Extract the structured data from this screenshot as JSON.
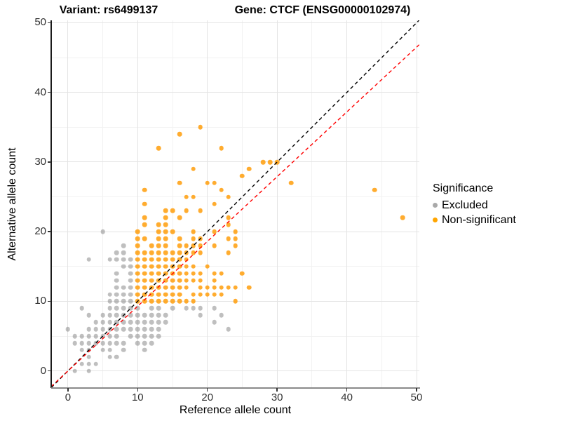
{
  "titles": {
    "left": "Variant: rs6499137",
    "right": "Gene: CTCF (ENSG00000102974)"
  },
  "legend": {
    "title": "Significance",
    "items": [
      {
        "label": "Excluded",
        "color": "#a9a9a9"
      },
      {
        "label": "Non-significant",
        "color": "#ffa500"
      }
    ]
  },
  "colors": {
    "excluded_point": "#8a8a8a",
    "nonsignificant_point": "#ff9e0b",
    "identity_line": "#000000",
    "fit_line": "#ff0000",
    "grid_major": "#e4e4e4",
    "grid_minor": "#f2f2f2"
  },
  "chart_data": {
    "type": "scatter",
    "title_left": "Variant: rs6499137",
    "title_right": "Gene: CTCF (ENSG00000102974)",
    "xlabel": "Reference allele count",
    "ylabel": "Alternative allele count",
    "xlim": [
      -2.4,
      50.4
    ],
    "ylim": [
      -2.35,
      50.35
    ],
    "x_major_ticks": [
      0,
      10,
      20,
      30,
      40,
      50
    ],
    "y_major_ticks": [
      0,
      10,
      20,
      30,
      40,
      50
    ],
    "x_minor_ticks": [
      5,
      15,
      25,
      35,
      45
    ],
    "y_minor_ticks": [
      5,
      15,
      25,
      35,
      45
    ],
    "grid": true,
    "legend_position": "right",
    "lines": [
      {
        "name": "identity",
        "slope": 1.0,
        "intercept": 0,
        "color": "#000000",
        "dash": "5,4"
      },
      {
        "name": "fit",
        "slope": 0.93,
        "intercept": 0,
        "color": "#ff0000",
        "dash": "5,4"
      }
    ],
    "series": [
      {
        "name": "Excluded",
        "class": "excluded",
        "points": [
          [
            1,
            0
          ],
          [
            3,
            0
          ],
          [
            2,
            1
          ],
          [
            3,
            1
          ],
          [
            4,
            1
          ],
          [
            3,
            2
          ],
          [
            6,
            2
          ],
          [
            7,
            2
          ],
          [
            2,
            3
          ],
          [
            3,
            3
          ],
          [
            5,
            3
          ],
          [
            6,
            3
          ],
          [
            8,
            3
          ],
          [
            11,
            3
          ],
          [
            1,
            4
          ],
          [
            2,
            4
          ],
          [
            3,
            4
          ],
          [
            4,
            4
          ],
          [
            5,
            4
          ],
          [
            6,
            4
          ],
          [
            7,
            4
          ],
          [
            8,
            4
          ],
          [
            10,
            4
          ],
          [
            11,
            4
          ],
          [
            12,
            4
          ],
          [
            1,
            5
          ],
          [
            2,
            5
          ],
          [
            3,
            5
          ],
          [
            4,
            5
          ],
          [
            5,
            5
          ],
          [
            6,
            5
          ],
          [
            7,
            5
          ],
          [
            9,
            5
          ],
          [
            10,
            5
          ],
          [
            11,
            5
          ],
          [
            12,
            5
          ],
          [
            13,
            5
          ],
          [
            0,
            6
          ],
          [
            3,
            6
          ],
          [
            4,
            6
          ],
          [
            5,
            6
          ],
          [
            6,
            6
          ],
          [
            7,
            6
          ],
          [
            8,
            6
          ],
          [
            9,
            6
          ],
          [
            10,
            6
          ],
          [
            11,
            6
          ],
          [
            12,
            6
          ],
          [
            13,
            6
          ],
          [
            23,
            6
          ],
          [
            4,
            7
          ],
          [
            5,
            7
          ],
          [
            6,
            7
          ],
          [
            7,
            7
          ],
          [
            8,
            7
          ],
          [
            9,
            7
          ],
          [
            10,
            7
          ],
          [
            11,
            7
          ],
          [
            12,
            7
          ],
          [
            13,
            7
          ],
          [
            14,
            7
          ],
          [
            21,
            7
          ],
          [
            3,
            8
          ],
          [
            5,
            8
          ],
          [
            6,
            8
          ],
          [
            7,
            8
          ],
          [
            8,
            8
          ],
          [
            9,
            8
          ],
          [
            10,
            8
          ],
          [
            11,
            8
          ],
          [
            12,
            8
          ],
          [
            13,
            8
          ],
          [
            14,
            8
          ],
          [
            19,
            8
          ],
          [
            22,
            8
          ],
          [
            2,
            9
          ],
          [
            6,
            9
          ],
          [
            7,
            9
          ],
          [
            8,
            9
          ],
          [
            9,
            9
          ],
          [
            10,
            9
          ],
          [
            12,
            9
          ],
          [
            13,
            9
          ],
          [
            15,
            9
          ],
          [
            17,
            9
          ],
          [
            18,
            9
          ],
          [
            19,
            9
          ],
          [
            21,
            9
          ],
          [
            6,
            10
          ],
          [
            7,
            10
          ],
          [
            8,
            10
          ],
          [
            9,
            10
          ],
          [
            6,
            11
          ],
          [
            7,
            11
          ],
          [
            8,
            11
          ],
          [
            9,
            11
          ],
          [
            7,
            12
          ],
          [
            8,
            12
          ],
          [
            9,
            12
          ],
          [
            7,
            13
          ],
          [
            9,
            13
          ],
          [
            7,
            14
          ],
          [
            9,
            14
          ],
          [
            8,
            15
          ],
          [
            9,
            15
          ],
          [
            3,
            16
          ],
          [
            6,
            16
          ],
          [
            7,
            16
          ],
          [
            8,
            16
          ],
          [
            9,
            16
          ],
          [
            7,
            17
          ],
          [
            8,
            17
          ],
          [
            8,
            18
          ],
          [
            5,
            20
          ]
        ]
      },
      {
        "name": "Non-significant",
        "class": "nonsig",
        "points": [
          [
            10,
            10
          ],
          [
            11,
            10
          ],
          [
            12,
            10
          ],
          [
            13,
            10
          ],
          [
            14,
            10
          ],
          [
            15,
            10
          ],
          [
            16,
            10
          ],
          [
            17,
            10
          ],
          [
            18,
            10
          ],
          [
            24,
            10
          ],
          [
            10,
            11
          ],
          [
            11,
            11
          ],
          [
            12,
            11
          ],
          [
            13,
            11
          ],
          [
            14,
            11
          ],
          [
            15,
            11
          ],
          [
            16,
            11
          ],
          [
            18,
            11
          ],
          [
            19,
            11
          ],
          [
            20,
            11
          ],
          [
            21,
            11
          ],
          [
            22,
            11
          ],
          [
            10,
            12
          ],
          [
            11,
            12
          ],
          [
            12,
            12
          ],
          [
            13,
            12
          ],
          [
            14,
            12
          ],
          [
            15,
            12
          ],
          [
            16,
            12
          ],
          [
            17,
            12
          ],
          [
            19,
            12
          ],
          [
            20,
            12
          ],
          [
            21,
            12
          ],
          [
            22,
            12
          ],
          [
            23,
            12
          ],
          [
            24,
            12
          ],
          [
            26,
            12
          ],
          [
            10,
            13
          ],
          [
            11,
            13
          ],
          [
            12,
            13
          ],
          [
            13,
            13
          ],
          [
            14,
            13
          ],
          [
            15,
            13
          ],
          [
            16,
            13
          ],
          [
            17,
            13
          ],
          [
            18,
            13
          ],
          [
            19,
            13
          ],
          [
            21,
            13
          ],
          [
            10,
            14
          ],
          [
            11,
            14
          ],
          [
            12,
            14
          ],
          [
            13,
            14
          ],
          [
            14,
            14
          ],
          [
            15,
            14
          ],
          [
            16,
            14
          ],
          [
            17,
            14
          ],
          [
            18,
            14
          ],
          [
            19,
            14
          ],
          [
            21,
            14
          ],
          [
            22,
            14
          ],
          [
            25,
            14
          ],
          [
            10,
            15
          ],
          [
            11,
            15
          ],
          [
            12,
            15
          ],
          [
            13,
            15
          ],
          [
            14,
            15
          ],
          [
            15,
            15
          ],
          [
            16,
            15
          ],
          [
            17,
            15
          ],
          [
            18,
            15
          ],
          [
            20,
            15
          ],
          [
            10,
            16
          ],
          [
            11,
            16
          ],
          [
            12,
            16
          ],
          [
            13,
            16
          ],
          [
            14,
            16
          ],
          [
            15,
            16
          ],
          [
            16,
            16
          ],
          [
            17,
            16
          ],
          [
            10,
            17
          ],
          [
            11,
            17
          ],
          [
            12,
            17
          ],
          [
            13,
            17
          ],
          [
            14,
            17
          ],
          [
            15,
            17
          ],
          [
            16,
            17
          ],
          [
            17,
            17
          ],
          [
            18,
            17
          ],
          [
            19,
            17
          ],
          [
            23,
            17
          ],
          [
            10,
            18
          ],
          [
            12,
            18
          ],
          [
            13,
            18
          ],
          [
            14,
            18
          ],
          [
            16,
            18
          ],
          [
            17,
            18
          ],
          [
            18,
            18
          ],
          [
            19,
            18
          ],
          [
            21,
            18
          ],
          [
            24,
            18
          ],
          [
            10,
            19
          ],
          [
            11,
            19
          ],
          [
            13,
            19
          ],
          [
            14,
            19
          ],
          [
            16,
            19
          ],
          [
            18,
            19
          ],
          [
            19,
            19
          ],
          [
            23,
            19
          ],
          [
            24,
            19
          ],
          [
            10,
            20
          ],
          [
            13,
            20
          ],
          [
            14,
            20
          ],
          [
            15,
            20
          ],
          [
            18,
            20
          ],
          [
            21,
            20
          ],
          [
            24,
            20
          ],
          [
            11,
            21
          ],
          [
            13,
            21
          ],
          [
            14,
            21
          ],
          [
            23,
            21
          ],
          [
            11,
            22
          ],
          [
            14,
            22
          ],
          [
            16,
            22
          ],
          [
            23,
            22
          ],
          [
            48,
            22
          ],
          [
            14,
            23
          ],
          [
            15,
            23
          ],
          [
            17,
            23
          ],
          [
            19,
            23
          ],
          [
            11,
            24
          ],
          [
            21,
            24
          ],
          [
            17,
            25
          ],
          [
            18,
            25
          ],
          [
            23,
            25
          ],
          [
            11,
            26
          ],
          [
            22,
            26
          ],
          [
            44,
            26
          ],
          [
            16,
            27
          ],
          [
            20,
            27
          ],
          [
            21,
            27
          ],
          [
            32,
            27
          ],
          [
            25,
            28
          ],
          [
            18,
            29
          ],
          [
            26,
            29
          ],
          [
            28,
            30
          ],
          [
            29,
            30
          ],
          [
            30,
            30
          ],
          [
            13,
            32
          ],
          [
            22,
            32
          ],
          [
            16,
            34
          ],
          [
            19,
            35
          ]
        ]
      }
    ]
  }
}
